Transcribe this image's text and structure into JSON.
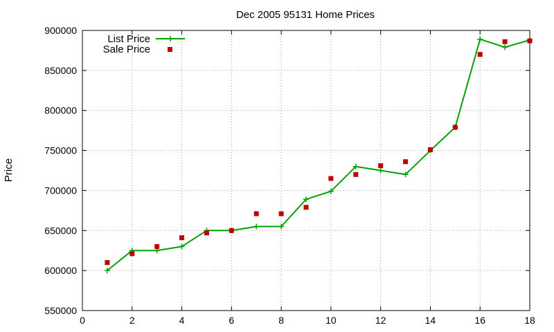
{
  "chart_data": {
    "type": "line",
    "title": "Dec 2005 95131 Home Prices",
    "xlabel": "",
    "ylabel": "Price",
    "xlim": [
      0,
      18
    ],
    "ylim": [
      550000,
      900000
    ],
    "xticks": [
      0,
      2,
      4,
      6,
      8,
      10,
      12,
      14,
      16,
      18
    ],
    "yticks": [
      550000,
      600000,
      650000,
      700000,
      750000,
      800000,
      850000,
      900000
    ],
    "grid": true,
    "legend_position": "top-left",
    "series": [
      {
        "name": "List Price",
        "style": "linespoints",
        "color": "#00a000",
        "marker": "plus",
        "x": [
          1,
          2,
          3,
          4,
          5,
          6,
          7,
          8,
          9,
          10,
          11,
          12,
          13,
          14,
          15,
          16,
          17,
          18
        ],
        "y": [
          600000,
          625000,
          625000,
          630000,
          650000,
          650000,
          655000,
          655000,
          689000,
          699000,
          730000,
          725000,
          720000,
          750000,
          779000,
          889000,
          879000,
          888000
        ]
      },
      {
        "name": "Sale Price",
        "style": "points",
        "color": "#c00000",
        "marker": "square",
        "x": [
          1,
          2,
          3,
          4,
          5,
          6,
          7,
          8,
          9,
          10,
          11,
          12,
          13,
          14,
          15,
          16,
          17,
          18
        ],
        "y": [
          610000,
          621000,
          630000,
          641000,
          647000,
          650000,
          671000,
          671000,
          679000,
          715000,
          720000,
          731000,
          736000,
          751000,
          779000,
          870000,
          886000,
          887000
        ]
      }
    ]
  }
}
